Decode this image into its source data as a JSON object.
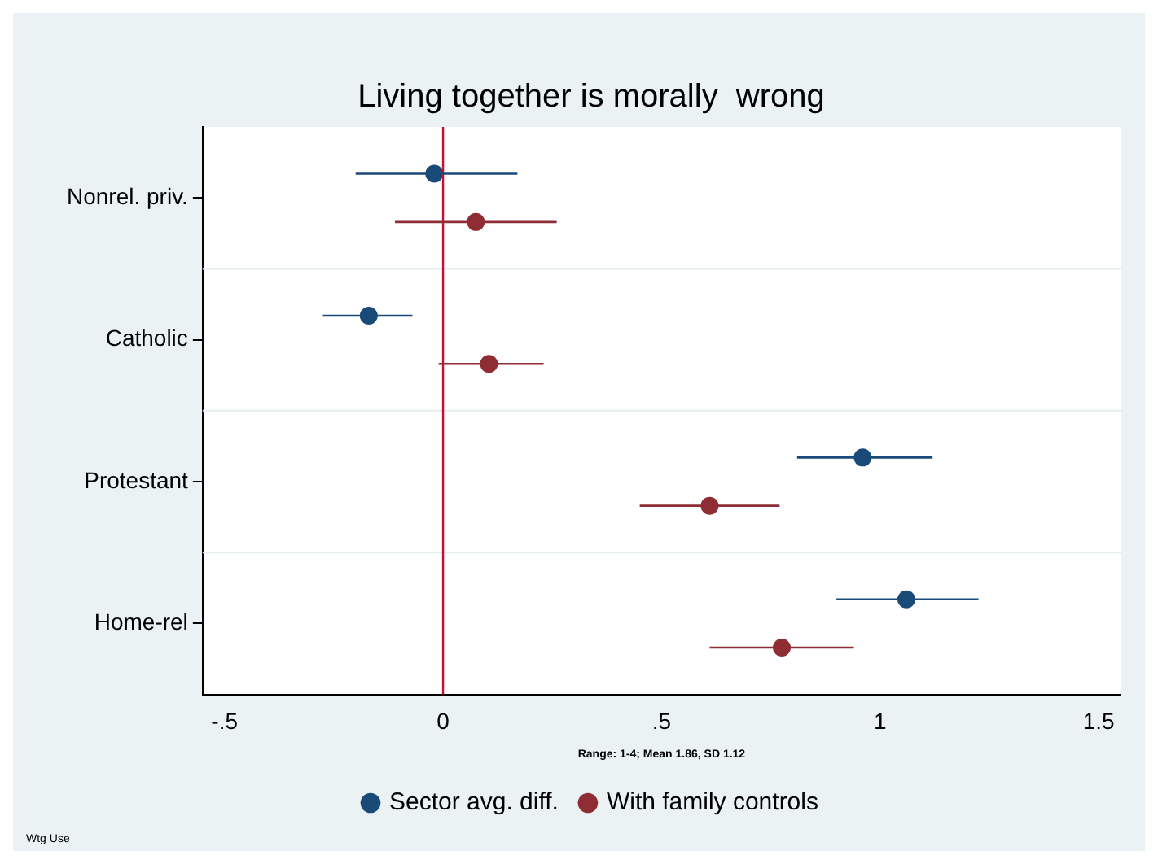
{
  "chart_data": {
    "type": "scatter",
    "orientation": "horizontal",
    "title": "Living together is morally  wrong",
    "xlabel": "Range: 1-4; Mean 1.86, SD 1.12",
    "annotations": [
      "Wtg Use"
    ],
    "categories": [
      "Nonrel. priv.",
      "Catholic",
      "Protestant",
      "Home-rel"
    ],
    "series": [
      {
        "name": "Sector avg. diff.",
        "color": "#1a4a78",
        "values": [
          -0.02,
          -0.17,
          0.96,
          1.06
        ],
        "errors": [
          [
            -0.2,
            0.17
          ],
          [
            -0.275,
            -0.07
          ],
          [
            0.81,
            1.12
          ],
          [
            0.9,
            1.225
          ]
        ]
      },
      {
        "name": "With family controls",
        "color": "#8f2d35",
        "values": [
          0.075,
          0.105,
          0.61,
          0.775
        ],
        "errors": [
          [
            -0.11,
            0.26
          ],
          [
            -0.01,
            0.23
          ],
          [
            0.45,
            0.77
          ],
          [
            0.61,
            0.94
          ]
        ]
      }
    ],
    "xlim": [
      -0.55,
      1.55
    ],
    "xticks": [
      {
        "value": -0.5,
        "label": "-.5"
      },
      0,
      {
        "value": 0.5,
        "label": ".5"
      },
      1,
      1.5
    ],
    "ref_lines": [
      {
        "axis": "x",
        "value": 0,
        "color": "#c8102e"
      }
    ],
    "grid": "y",
    "legend": "bottom",
    "marker": "circle"
  }
}
